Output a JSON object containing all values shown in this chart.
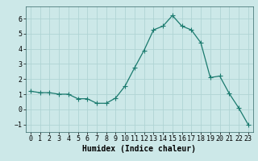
{
  "x": [
    0,
    1,
    2,
    3,
    4,
    5,
    6,
    7,
    8,
    9,
    10,
    11,
    12,
    13,
    14,
    15,
    16,
    17,
    18,
    19,
    20,
    21,
    22,
    23
  ],
  "y": [
    1.2,
    1.1,
    1.1,
    1.0,
    1.0,
    0.7,
    0.7,
    0.4,
    0.4,
    0.75,
    1.55,
    2.75,
    3.9,
    5.25,
    5.5,
    6.2,
    5.5,
    5.25,
    4.4,
    2.1,
    2.2,
    1.05,
    0.1,
    -1.0
  ],
  "line_color": "#1a7a6e",
  "marker_color": "#1a7a6e",
  "bg_color": "#cce8e8",
  "grid_color": "#b0d4d4",
  "xlabel": "Humidex (Indice chaleur)",
  "ylim": [
    -1.5,
    6.8
  ],
  "xlim": [
    -0.5,
    23.5
  ],
  "yticks": [
    -1,
    0,
    1,
    2,
    3,
    4,
    5,
    6
  ],
  "xtick_labels": [
    "0",
    "1",
    "2",
    "3",
    "4",
    "5",
    "6",
    "7",
    "8",
    "9",
    "10",
    "11",
    "12",
    "13",
    "14",
    "15",
    "16",
    "17",
    "18",
    "19",
    "20",
    "21",
    "22",
    "23"
  ],
  "xlabel_fontsize": 7,
  "tick_fontsize": 6,
  "marker_size": 2.0,
  "linewidth": 0.9
}
